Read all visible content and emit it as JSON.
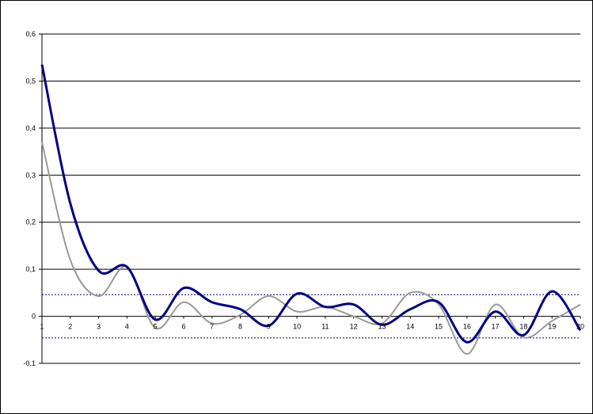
{
  "chart_data": {
    "type": "line",
    "title": "",
    "xlabel": "",
    "ylabel": "",
    "x": [
      1,
      2,
      3,
      4,
      5,
      6,
      7,
      8,
      9,
      10,
      11,
      12,
      13,
      14,
      15,
      16,
      17,
      18,
      19,
      20
    ],
    "x_tick_labels": [
      "1",
      "2",
      "3",
      "4",
      "5",
      "6",
      "7",
      "8",
      "9",
      "10",
      "11",
      "12",
      "13",
      "14",
      "15",
      "16",
      "17",
      "18",
      "19",
      "20"
    ],
    "ylim": [
      -0.1,
      0.6
    ],
    "y_ticks": [
      -0.1,
      0,
      0.1,
      0.2,
      0.3,
      0.4,
      0.5,
      0.6
    ],
    "y_tick_labels": [
      "-0,1",
      "0",
      "0,1",
      "0,2",
      "0,3",
      "0,4",
      "0,5",
      "0,6"
    ],
    "grid": true,
    "legend": "none",
    "series": [
      {
        "color": "#000080",
        "values": [
          0.535,
          0.24,
          0.097,
          0.105,
          -0.007,
          0.06,
          0.03,
          0.015,
          -0.02,
          0.048,
          0.02,
          0.025,
          -0.018,
          0.015,
          0.03,
          -0.055,
          0.01,
          -0.04,
          0.053,
          -0.03
        ]
      },
      {
        "color": "#999999",
        "values": [
          0.37,
          0.12,
          0.043,
          0.105,
          -0.025,
          0.03,
          -0.015,
          0.003,
          0.043,
          0.01,
          0.02,
          0.0,
          -0.015,
          0.05,
          0.025,
          -0.08,
          0.025,
          -0.045,
          -0.01,
          0.025
        ]
      }
    ],
    "reference_lines": [
      {
        "value": 0.046,
        "style": "dotted",
        "color": "#000080"
      },
      {
        "value": -0.046,
        "style": "dotted",
        "color": "#000080"
      }
    ]
  }
}
